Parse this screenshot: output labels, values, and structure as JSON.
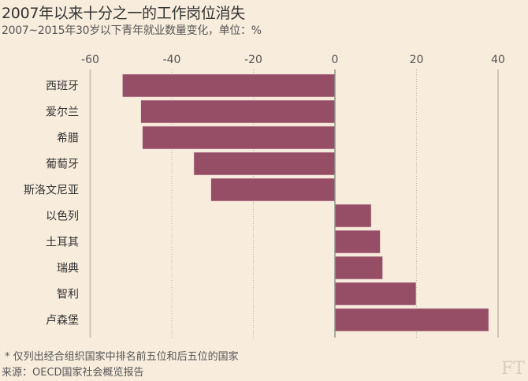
{
  "chart_data": {
    "type": "bar",
    "orientation": "horizontal",
    "title": "2007年以来十分之一的工作岗位消失",
    "subtitle": "2007~2015年30岁以下青年就业数量变化，单位：%",
    "categories": [
      "西班牙",
      "爱尔兰",
      "希腊",
      "葡萄牙",
      "斯洛文尼亚",
      "以色列",
      "土耳其",
      "瑞典",
      "智利",
      "卢森堡"
    ],
    "values": [
      -52.1,
      -47.6,
      -47.2,
      -34.6,
      -30.4,
      8.9,
      11.1,
      11.7,
      19.9,
      37.7
    ],
    "xlim": [
      -60,
      40
    ],
    "xticks": [
      "-60",
      "-40",
      "-20",
      "0",
      "20",
      "40"
    ],
    "xtick_values": [
      -60,
      -40,
      -20,
      0,
      20,
      40
    ],
    "xlabel": "",
    "ylabel": "",
    "bar_color": "#964d66",
    "grid": true
  },
  "footer": {
    "note": "* 仅列出经合组织国家中排名前五位和后五位的国家",
    "source": "来源：OECD国家社会概览报告",
    "logo": "FT"
  }
}
